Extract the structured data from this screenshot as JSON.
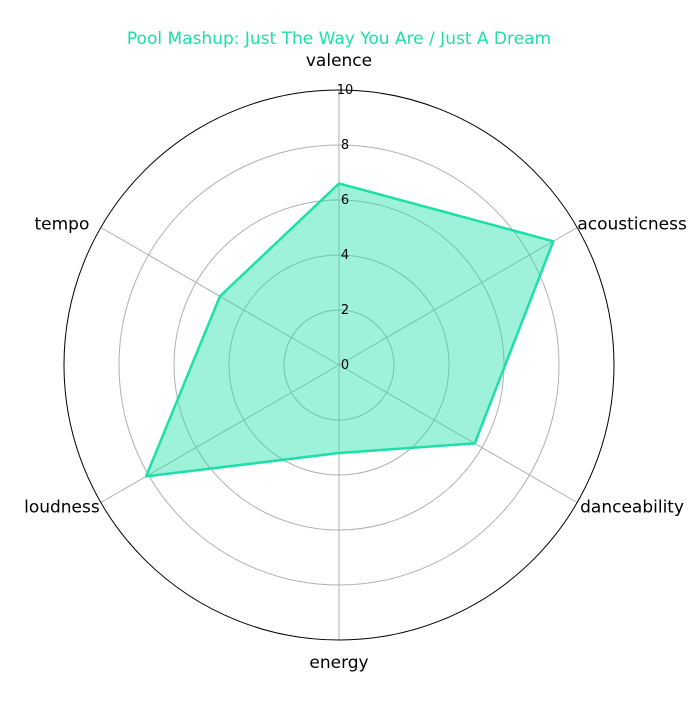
{
  "chart_data": {
    "type": "radar",
    "title": "Pool Mashup: Just The Way You Are / Just A Dream",
    "axes": [
      "valence",
      "acousticness",
      "danceability",
      "energy",
      "loudness",
      "tempo"
    ],
    "values": [
      6.6,
      9.0,
      5.7,
      3.2,
      8.1,
      5.0
    ],
    "rlim": [
      0,
      10
    ],
    "rticks": [
      "0",
      "2",
      "4",
      "6",
      "8",
      "10"
    ],
    "grid": true,
    "colors": {
      "series": "#1de0a8",
      "fill": "#1de0a8",
      "title": "#1de0a8",
      "grid": "#b0b0b0",
      "frame": "#000000"
    }
  }
}
